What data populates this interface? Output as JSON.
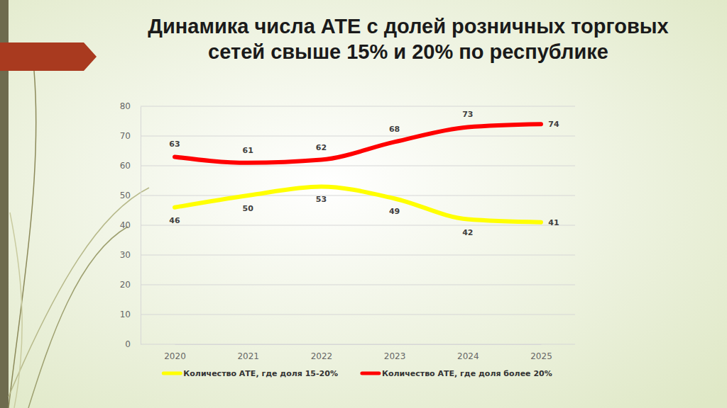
{
  "chart_data": {
    "type": "line",
    "title": "Динамика числа АТЕ с долей розничных торговых сетей свыше 15% и 20% по республике",
    "categories": [
      "2020",
      "2021",
      "2022",
      "2023",
      "2024",
      "2025"
    ],
    "series": [
      {
        "name": "Количество АТЕ, где доля 15-20%",
        "color": "#ffff00",
        "values": [
          46,
          50,
          53,
          49,
          42,
          41
        ]
      },
      {
        "name": "Количество АТЕ, где доля более 20%",
        "color": "#ff0000",
        "values": [
          63,
          61,
          62,
          68,
          73,
          74
        ]
      }
    ],
    "ylim": [
      0,
      80
    ],
    "yticks": [
      0,
      10,
      20,
      30,
      40,
      50,
      60,
      70,
      80
    ],
    "grid": true,
    "legend": "bottom",
    "data_labels": true
  }
}
